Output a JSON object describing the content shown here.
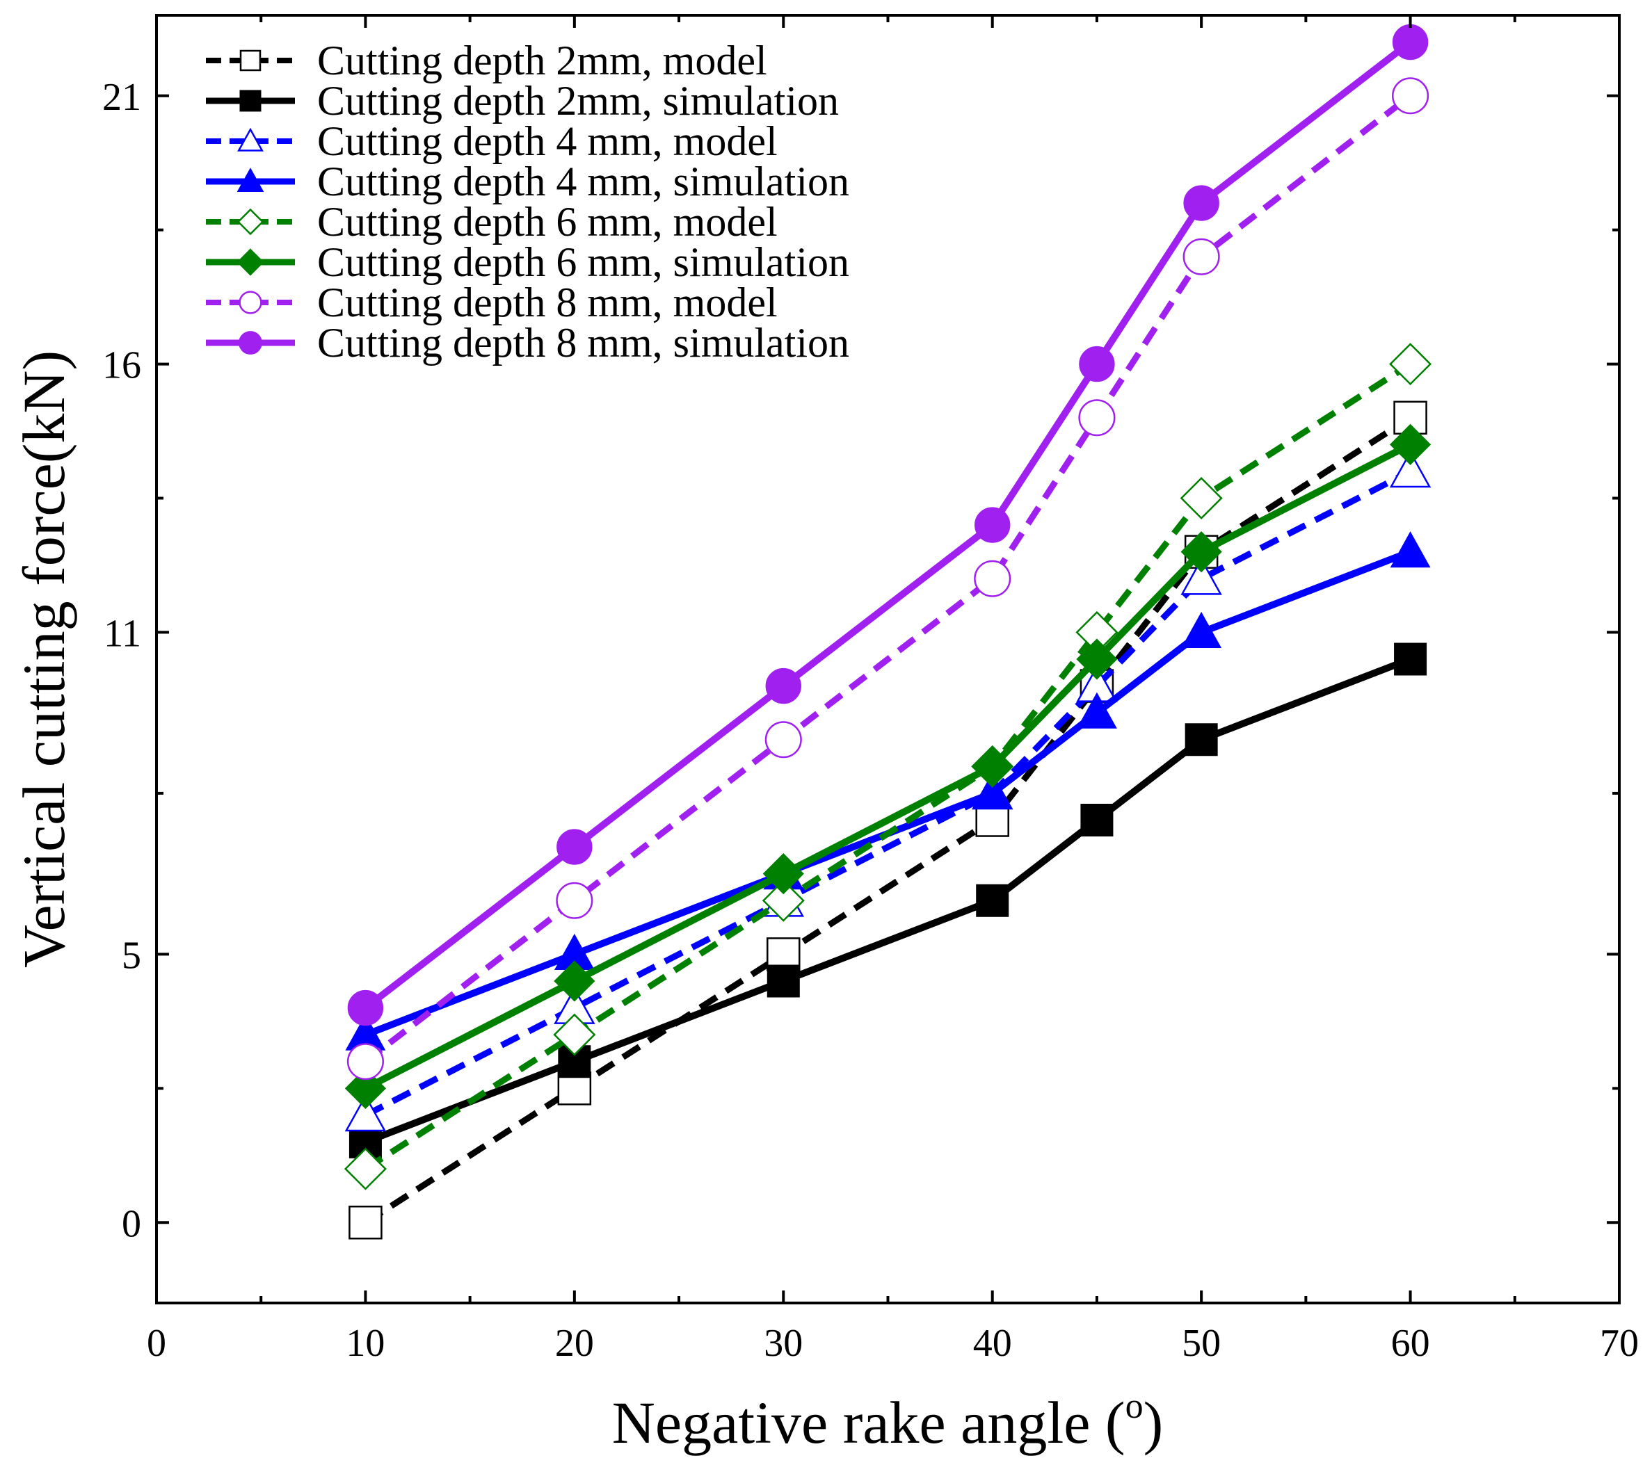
{
  "chart_data": {
    "type": "line",
    "title": "",
    "xlabel": "Negative rake angle  (o)",
    "xlabel_main": "Negative rake angle  (",
    "xlabel_sup": "o",
    "xlabel_close": ")",
    "ylabel": "Vertical cutting force(kN)",
    "xlim": [
      0,
      70
    ],
    "ylim": [
      -1.5,
      22.5
    ],
    "xticks": [
      0,
      10,
      20,
      30,
      40,
      50,
      60,
      70
    ],
    "yticks": [
      0,
      5,
      11,
      16,
      21
    ],
    "legend_position": "top-left",
    "x": [
      10,
      20,
      30,
      40,
      45,
      50,
      60
    ],
    "series": [
      {
        "name": "Cutting depth 2mm, model",
        "color": "#000000",
        "dash": true,
        "marker": "square",
        "filled": false,
        "values": [
          0.0,
          2.5,
          5.0,
          7.5,
          10.0,
          12.5,
          15.0
        ]
      },
      {
        "name": "Cutting depth 2mm,  simulation",
        "color": "#000000",
        "dash": false,
        "marker": "square",
        "filled": true,
        "values": [
          1.5,
          3.0,
          4.5,
          6.0,
          7.5,
          9.0,
          10.5
        ]
      },
      {
        "name": "Cutting depth 4 mm,  model",
        "color": "#0000ff",
        "dash": true,
        "marker": "triangle",
        "filled": false,
        "values": [
          2.0,
          4.0,
          6.0,
          8.0,
          10.0,
          12.0,
          14.0
        ]
      },
      {
        "name": "Cutting depth 4 mm, simulation",
        "color": "#0000ff",
        "dash": false,
        "marker": "triangle",
        "filled": true,
        "values": [
          3.5,
          5.0,
          6.5,
          8.0,
          9.5,
          11.0,
          12.5
        ]
      },
      {
        "name": "Cutting depth 6 mm,  model",
        "color": "#008000",
        "dash": true,
        "marker": "diamond",
        "filled": false,
        "values": [
          1.0,
          3.5,
          6.0,
          8.5,
          11.0,
          13.5,
          16.0
        ]
      },
      {
        "name": "Cutting depth 6 mm, simulation",
        "color": "#008000",
        "dash": false,
        "marker": "diamond",
        "filled": true,
        "values": [
          2.5,
          4.5,
          6.5,
          8.5,
          10.5,
          12.5,
          14.5
        ]
      },
      {
        "name": "Cutting depth 8 mm,  model",
        "color": "#a020f0",
        "dash": true,
        "marker": "circle",
        "filled": false,
        "values": [
          3.0,
          6.0,
          9.0,
          12.0,
          15.0,
          18.0,
          21.0
        ]
      },
      {
        "name": "Cutting depth 8 mm,  simulation",
        "color": "#a020f0",
        "dash": false,
        "marker": "circle",
        "filled": true,
        "values": [
          4.0,
          7.0,
          10.0,
          13.0,
          16.0,
          19.0,
          22.0
        ]
      }
    ]
  }
}
